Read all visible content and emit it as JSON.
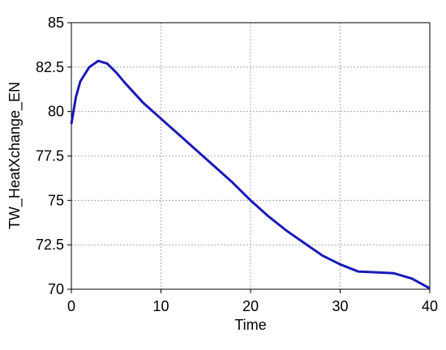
{
  "chart_data": {
    "type": "line",
    "x_label": "Time",
    "y_label": "TW_HeatXchange_EN",
    "x": [
      0,
      0.5,
      1,
      2,
      3,
      4,
      5,
      6,
      8,
      10,
      12,
      14,
      16,
      18,
      20,
      22,
      24,
      26,
      28,
      30,
      32,
      34,
      36,
      38,
      40
    ],
    "series": [
      {
        "color": "#1a1ab8",
        "values": [
          79.3,
          80.8,
          81.7,
          82.5,
          82.85,
          82.7,
          82.2,
          81.6,
          80.5,
          79.6,
          78.7,
          77.8,
          76.9,
          76.0,
          75.0,
          74.1,
          73.3,
          72.6,
          71.9,
          71.4,
          71.0,
          70.95,
          70.9,
          70.6,
          70.05
        ]
      }
    ],
    "xlim": [
      0,
      40
    ],
    "xticks": [
      0,
      10,
      20,
      30,
      40
    ],
    "ylim": [
      70,
      85
    ],
    "yticks": [
      70,
      72.5,
      75,
      77.5,
      80,
      82.5,
      85
    ],
    "grid": true
  }
}
